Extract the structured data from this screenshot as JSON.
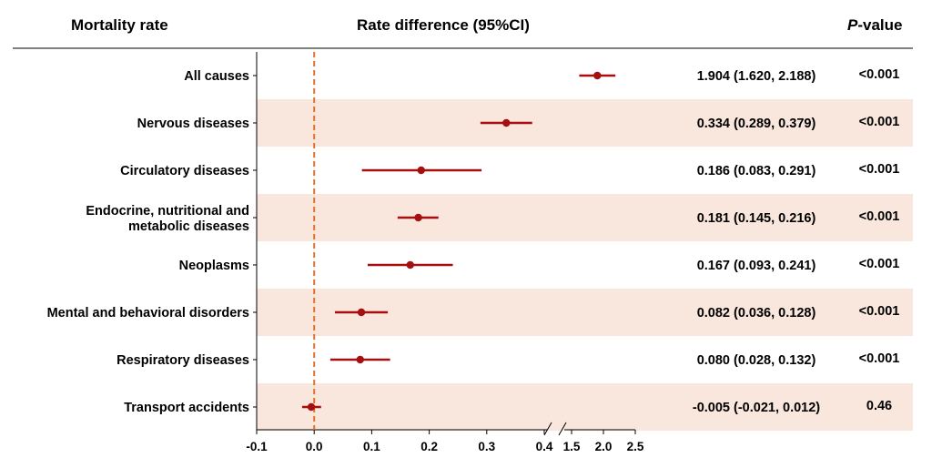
{
  "headers": {
    "left": "Mortality rate",
    "middle": "Rate difference (95%CI)",
    "right_italic": "P",
    "right_rest": "-value"
  },
  "chart_data": {
    "type": "forest",
    "xlabel": "",
    "ylabel": "",
    "x_axis_broken": true,
    "x_segments": [
      [
        -0.1,
        0.4
      ],
      [
        1.5,
        2.5
      ]
    ],
    "x_ticks": [
      "-0.1",
      "0.0",
      "0.1",
      "0.2",
      "0.3",
      "0.4",
      "1.5",
      "2.0",
      "2.5"
    ],
    "reference_line": 0.0,
    "colors": {
      "point": "#a50f0f",
      "reference": "#e0722b",
      "band": "#f9e6dc"
    },
    "rows": [
      {
        "label": [
          "All causes"
        ],
        "estimate": 1.904,
        "lower": 1.62,
        "upper": 2.188,
        "ci_text": "1.904 (1.620, 2.188)",
        "p": "<0.001"
      },
      {
        "label": [
          "Nervous diseases"
        ],
        "estimate": 0.334,
        "lower": 0.289,
        "upper": 0.379,
        "ci_text": "0.334 (0.289, 0.379)",
        "p": "<0.001"
      },
      {
        "label": [
          "Circulatory diseases"
        ],
        "estimate": 0.186,
        "lower": 0.083,
        "upper": 0.291,
        "ci_text": "0.186 (0.083, 0.291)",
        "p": "<0.001"
      },
      {
        "label": [
          "Endocrine, nutritional and",
          "metabolic diseases"
        ],
        "estimate": 0.181,
        "lower": 0.145,
        "upper": 0.216,
        "ci_text": "0.181 (0.145, 0.216)",
        "p": "<0.001"
      },
      {
        "label": [
          "Neoplasms"
        ],
        "estimate": 0.167,
        "lower": 0.093,
        "upper": 0.241,
        "ci_text": "0.167 (0.093, 0.241)",
        "p": "<0.001"
      },
      {
        "label": [
          "Mental and behavioral disorders"
        ],
        "estimate": 0.082,
        "lower": 0.036,
        "upper": 0.128,
        "ci_text": "0.082 (0.036, 0.128)",
        "p": "<0.001"
      },
      {
        "label": [
          "Respiratory diseases"
        ],
        "estimate": 0.08,
        "lower": 0.028,
        "upper": 0.132,
        "ci_text": "0.080 (0.028, 0.132)",
        "p": "<0.001"
      },
      {
        "label": [
          "Transport accidents"
        ],
        "estimate": -0.005,
        "lower": -0.021,
        "upper": 0.012,
        "ci_text": "-0.005 (-0.021, 0.012)",
        "p": "0.46"
      }
    ]
  }
}
